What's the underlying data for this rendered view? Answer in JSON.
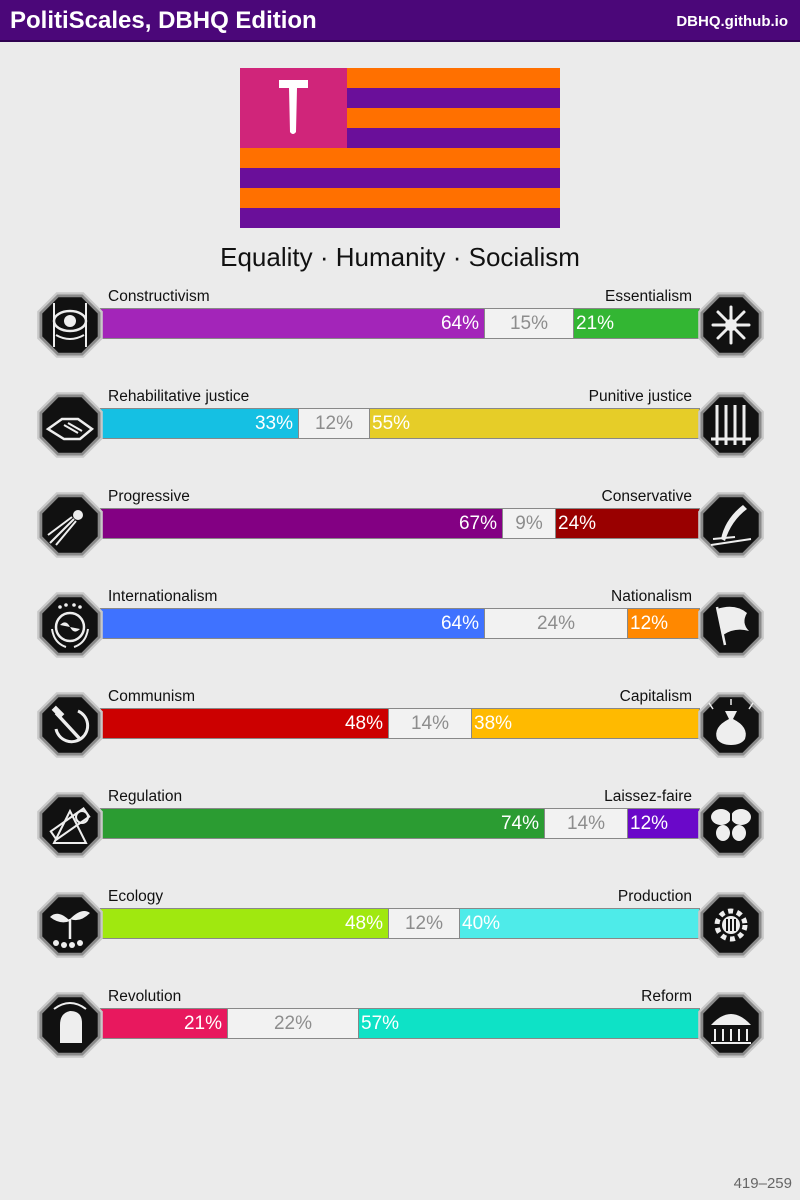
{
  "header": {
    "title": "PolitiScales, DBHQ Edition",
    "site": "DBHQ.github.io"
  },
  "flag": {
    "stripe_colors": [
      "#ff7000",
      "#6a0f9a",
      "#ff7000",
      "#6a0f9a",
      "#ff7000",
      "#6a0f9a",
      "#ff7000",
      "#6a0f9a"
    ],
    "canton_color": "#d0257a",
    "emblem_color": "#ffffff",
    "emblem": "hammer-symbol"
  },
  "motto": "Equality · Humanity · Socialism",
  "axes": [
    {
      "left": "Constructivism",
      "right": "Essentialism",
      "left_pct": 64,
      "mid_pct": 15,
      "right_pct": 21,
      "left_text": "64%",
      "mid_text": "15%",
      "right_text": "21%",
      "left_color": "#a325b9",
      "right_color": "#33b633",
      "left_icon": "eye-icon",
      "right_icon": "flower-icon"
    },
    {
      "left": "Rehabilitative justice",
      "right": "Punitive justice",
      "left_pct": 33,
      "mid_pct": 12,
      "right_pct": 55,
      "left_text": "33%",
      "mid_text": "12%",
      "right_text": "55%",
      "left_color": "#15c0e3",
      "right_color": "#e6cd28",
      "left_icon": "handshake-icon",
      "right_icon": "prison-bars-icon"
    },
    {
      "left": "Progressive",
      "right": "Conservative",
      "left_pct": 67,
      "mid_pct": 9,
      "right_pct": 24,
      "left_text": "67%",
      "mid_text": "9%",
      "right_text": "24%",
      "left_color": "#830083",
      "right_color": "#990000",
      "left_icon": "comet-icon",
      "right_icon": "quill-icon"
    },
    {
      "left": "Internationalism",
      "right": "Nationalism",
      "left_pct": 64,
      "mid_pct": 24,
      "right_pct": 12,
      "left_text": "64%",
      "mid_text": "24%",
      "right_text": "12%",
      "left_color": "#3f72ff",
      "right_color": "#ff8800",
      "left_icon": "globe-icon",
      "right_icon": "flag-icon"
    },
    {
      "left": "Communism",
      "right": "Capitalism",
      "left_pct": 48,
      "mid_pct": 14,
      "right_pct": 38,
      "left_text": "48%",
      "mid_text": "14%",
      "right_text": "38%",
      "left_color": "#cc0000",
      "right_color": "#ffba00",
      "left_icon": "hammer-sickle-icon",
      "right_icon": "money-bag-icon"
    },
    {
      "left": "Regulation",
      "right": "Laissez-faire",
      "left_pct": 74,
      "mid_pct": 14,
      "right_pct": 12,
      "left_text": "74%",
      "mid_text": "14%",
      "right_text": "12%",
      "left_color": "#2b9c32",
      "right_color": "#6a08c9",
      "left_icon": "ruler-icon",
      "right_icon": "butterfly-icon"
    },
    {
      "left": "Ecology",
      "right": "Production",
      "left_pct": 48,
      "mid_pct": 12,
      "right_pct": 40,
      "left_text": "48%",
      "mid_text": "12%",
      "right_text": "40%",
      "left_color": "#a0e80f",
      "right_color": "#4eebe9",
      "left_icon": "sprout-icon",
      "right_icon": "gear-icon"
    },
    {
      "left": "Revolution",
      "right": "Reform",
      "left_pct": 21,
      "mid_pct": 22,
      "right_pct": 57,
      "left_text": "21%",
      "mid_text": "22%",
      "right_text": "57%",
      "left_color": "#e8185e",
      "right_color": "#0ee2c6",
      "left_icon": "fist-icon",
      "right_icon": "parliament-icon"
    }
  ],
  "footer": "419–259"
}
